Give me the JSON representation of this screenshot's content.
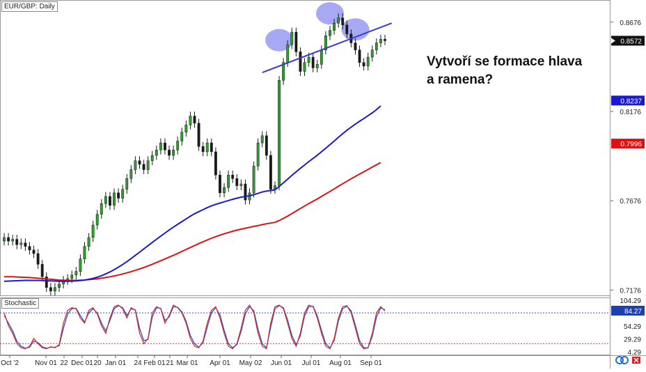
{
  "chart_data": {
    "type": "candlestick",
    "symbol": "EUR/GBP: Daily",
    "x_ticks": [
      "Oct '2",
      "Nov 01",
      "22",
      "Dec 01",
      "20",
      "Jan 01",
      "24",
      "Feb 01",
      "21",
      "Mar 01",
      "Apr 01",
      "May 02",
      "Jun 01",
      "Jul 01",
      "Aug 01",
      "Sep 01"
    ],
    "price_ticks": [
      "0.8676",
      "0.8176",
      "0.7676",
      "0.7176"
    ],
    "ylim": [
      0.7146,
      0.88
    ],
    "current_price": "0.8572",
    "ma_fast_label": "0.8237",
    "ma_slow_label": "0.7996",
    "series": [
      {
        "name": "candles",
        "close": [
          0.747,
          0.745,
          0.746,
          0.743,
          0.744,
          0.742,
          0.74,
          0.738,
          0.732,
          0.725,
          0.719,
          0.717,
          0.719,
          0.721,
          0.723,
          0.724,
          0.726,
          0.728,
          0.735,
          0.742,
          0.747,
          0.754,
          0.76,
          0.766,
          0.77,
          0.765,
          0.772,
          0.769,
          0.774,
          0.78,
          0.785,
          0.79,
          0.788,
          0.785,
          0.79,
          0.793,
          0.796,
          0.8,
          0.796,
          0.793,
          0.796,
          0.801,
          0.806,
          0.81,
          0.815,
          0.811,
          0.798,
          0.795,
          0.8,
          0.795,
          0.782,
          0.772,
          0.775,
          0.782,
          0.78,
          0.776,
          0.777,
          0.768,
          0.772,
          0.787,
          0.8,
          0.804,
          0.793,
          0.774,
          0.776,
          0.835,
          0.845,
          0.855,
          0.862,
          0.851,
          0.84,
          0.845,
          0.848,
          0.842,
          0.844,
          0.852,
          0.86,
          0.863,
          0.867,
          0.87,
          0.866,
          0.861,
          0.856,
          0.852,
          0.845,
          0.843,
          0.848,
          0.852,
          0.856,
          0.858,
          0.8572
        ]
      },
      {
        "name": "ma_fast",
        "values": [
          0.7225,
          0.7226,
          0.7227,
          0.7228,
          0.7229,
          0.723,
          0.723,
          0.723,
          0.723,
          0.7229,
          0.7228,
          0.7227,
          0.7226,
          0.7225,
          0.7225,
          0.7225,
          0.7226,
          0.7227,
          0.7229,
          0.7232,
          0.7236,
          0.7241,
          0.7248,
          0.7256,
          0.7266,
          0.7277,
          0.729,
          0.7304,
          0.7319,
          0.7335,
          0.7352,
          0.737,
          0.7388,
          0.7406,
          0.7424,
          0.7442,
          0.746,
          0.7478,
          0.7495,
          0.7512,
          0.7528,
          0.7544,
          0.7559,
          0.7574,
          0.7589,
          0.7603,
          0.7615,
          0.7626,
          0.7637,
          0.7647,
          0.7656,
          0.7663,
          0.767,
          0.7677,
          0.7684,
          0.769,
          0.7696,
          0.77,
          0.7704,
          0.771,
          0.7717,
          0.7725,
          0.773,
          0.7733,
          0.7737,
          0.7756,
          0.7776,
          0.7797,
          0.7818,
          0.7838,
          0.7857,
          0.7876,
          0.7895,
          0.7913,
          0.7931,
          0.795,
          0.797,
          0.799,
          0.801,
          0.8031,
          0.8051,
          0.807,
          0.8088,
          0.8105,
          0.8121,
          0.8136,
          0.8152,
          0.8168,
          0.8186,
          0.8207,
          0.8237
        ]
      },
      {
        "name": "ma_slow",
        "values": [
          0.725,
          0.725,
          0.725,
          0.7249,
          0.7248,
          0.7247,
          0.7246,
          0.7244,
          0.7242,
          0.724,
          0.7238,
          0.7236,
          0.7234,
          0.7232,
          0.7231,
          0.723,
          0.723,
          0.723,
          0.7231,
          0.7232,
          0.7234,
          0.7236,
          0.7239,
          0.7242,
          0.7246,
          0.725,
          0.7255,
          0.726,
          0.7266,
          0.7272,
          0.7279,
          0.7286,
          0.7294,
          0.7302,
          0.7311,
          0.732,
          0.733,
          0.734,
          0.735,
          0.736,
          0.737,
          0.7381,
          0.7392,
          0.7403,
          0.7414,
          0.7425,
          0.7436,
          0.7446,
          0.7456,
          0.7466,
          0.7475,
          0.7483,
          0.7491,
          0.7498,
          0.7505,
          0.7511,
          0.7517,
          0.7522,
          0.7527,
          0.7532,
          0.7537,
          0.7542,
          0.7547,
          0.7551,
          0.7555,
          0.7565,
          0.7577,
          0.759,
          0.7604,
          0.7618,
          0.7632,
          0.7646,
          0.766,
          0.7673,
          0.7686,
          0.77,
          0.7714,
          0.7728,
          0.7742,
          0.7757,
          0.7771,
          0.7785,
          0.7799,
          0.7812,
          0.7825,
          0.7838,
          0.7851,
          0.7864,
          0.7877,
          0.789,
          0.7996
        ]
      }
    ],
    "neckline": [
      [
        65,
        0.843
      ],
      [
        86,
        0.862
      ]
    ],
    "shoulders_head": [
      65,
      77,
      83
    ],
    "stochastic": {
      "label": "Stochastic",
      "value_label": "84.27",
      "ticks": [
        "104.29",
        "54.29",
        "29.29",
        "4.29"
      ],
      "ylim": [
        0,
        110
      ],
      "overbought": 80,
      "oversold": 20,
      "k": [
        80,
        55,
        40,
        20,
        12,
        10,
        15,
        30,
        20,
        12,
        10,
        14,
        12,
        18,
        60,
        85,
        90,
        88,
        70,
        60,
        85,
        90,
        78,
        55,
        40,
        70,
        92,
        95,
        88,
        70,
        90,
        85,
        40,
        20,
        30,
        80,
        92,
        88,
        60,
        75,
        95,
        90,
        80,
        60,
        30,
        15,
        12,
        25,
        60,
        85,
        92,
        70,
        40,
        15,
        10,
        20,
        50,
        85,
        95,
        80,
        40,
        15,
        10,
        60,
        92,
        95,
        88,
        60,
        30,
        15,
        40,
        80,
        95,
        92,
        70,
        40,
        15,
        10,
        30,
        70,
        92,
        94,
        80,
        50,
        20,
        10,
        12,
        40,
        80,
        92,
        84
      ],
      "d": [
        75,
        60,
        45,
        25,
        15,
        11,
        13,
        25,
        22,
        14,
        11,
        13,
        13,
        16,
        50,
        78,
        88,
        89,
        75,
        62,
        80,
        88,
        80,
        60,
        45,
        65,
        88,
        94,
        90,
        75,
        88,
        86,
        50,
        26,
        28,
        72,
        90,
        89,
        65,
        72,
        92,
        91,
        82,
        64,
        36,
        20,
        13,
        22,
        52,
        80,
        90,
        76,
        46,
        20,
        12,
        18,
        44,
        78,
        92,
        84,
        48,
        20,
        12,
        52,
        88,
        94,
        90,
        66,
        36,
        18,
        35,
        74,
        92,
        93,
        74,
        46,
        20,
        12,
        26,
        64,
        88,
        93,
        84,
        56,
        26,
        12,
        12,
        34,
        72,
        90,
        86
      ]
    }
  },
  "annotation": "Vytvoří se formace hlava a ramena?",
  "colors": {
    "bull": "#2f9e2f",
    "bear": "#1a1a1a",
    "ma_fast": "#1a1acc",
    "ma_slow": "#dd1111",
    "neckline": "#3a3ad6",
    "highlight": "#8a8cf0",
    "stoch_k": "#d03030",
    "stoch_d": "#3050d0"
  }
}
